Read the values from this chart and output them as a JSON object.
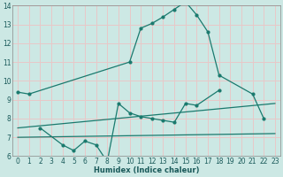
{
  "xlabel": "Humidex (Indice chaleur)",
  "background_color": "#cce8e4",
  "grid_color": "#e8c8c8",
  "line_color": "#1a7a6e",
  "xlim": [
    -0.5,
    23.5
  ],
  "ylim": [
    6,
    14
  ],
  "xticks": [
    0,
    1,
    2,
    3,
    4,
    5,
    6,
    7,
    8,
    9,
    10,
    11,
    12,
    13,
    14,
    15,
    16,
    17,
    18,
    19,
    20,
    21,
    22,
    23
  ],
  "yticks": [
    6,
    7,
    8,
    9,
    10,
    11,
    12,
    13,
    14
  ],
  "line1_x": [
    0,
    1,
    10,
    11,
    12,
    13,
    14,
    15,
    16,
    17,
    18,
    21,
    22
  ],
  "line1_y": [
    9.4,
    9.3,
    11.0,
    12.8,
    13.05,
    13.4,
    13.8,
    14.2,
    13.5,
    12.6,
    10.3,
    9.3,
    8.0
  ],
  "line2_x": [
    2,
    4,
    5,
    6,
    7,
    8,
    9,
    10,
    11,
    12,
    13,
    14,
    15,
    16,
    18
  ],
  "line2_y": [
    7.5,
    6.6,
    6.3,
    6.8,
    6.6,
    5.7,
    8.8,
    8.3,
    8.1,
    8.0,
    7.9,
    7.8,
    8.8,
    8.7,
    9.5
  ],
  "line3_x": [
    0,
    23
  ],
  "line3_y": [
    7.5,
    8.8
  ],
  "line4_x": [
    0,
    23
  ],
  "line4_y": [
    7.0,
    7.2
  ]
}
